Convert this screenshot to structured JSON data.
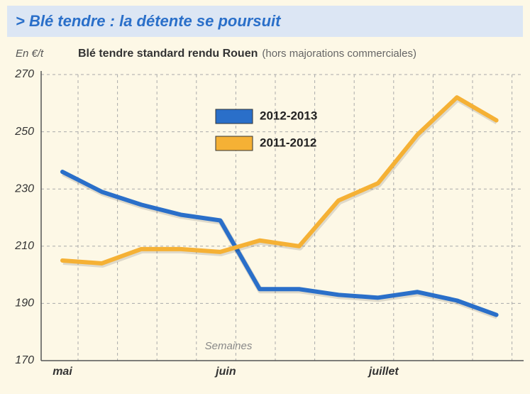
{
  "chart_data": {
    "type": "line",
    "title": "> Blé tendre : la détente se poursuit",
    "subtitle": "Blé tendre standard rendu Rouen",
    "subtitle_note": "(hors majorations commerciales)",
    "y_label": "En €/t",
    "x_label": "Semaines",
    "categories": [
      "mai",
      null,
      null,
      null,
      "juin",
      null,
      null,
      null,
      "juillet",
      null,
      null,
      null
    ],
    "series": [
      {
        "name": "2012-2013",
        "color": "#2a6fc9",
        "values": [
          236,
          229,
          224.5,
          221,
          219,
          195,
          195,
          193,
          192,
          194,
          191,
          186
        ]
      },
      {
        "name": "2011-2012",
        "color": "#f5b135",
        "values": [
          205,
          204,
          209,
          209,
          208,
          212,
          210,
          226,
          232,
          249,
          262,
          254
        ]
      }
    ],
    "ylim": [
      170,
      270
    ],
    "yticks": [
      170,
      190,
      210,
      230,
      250,
      270
    ],
    "grid": true
  }
}
